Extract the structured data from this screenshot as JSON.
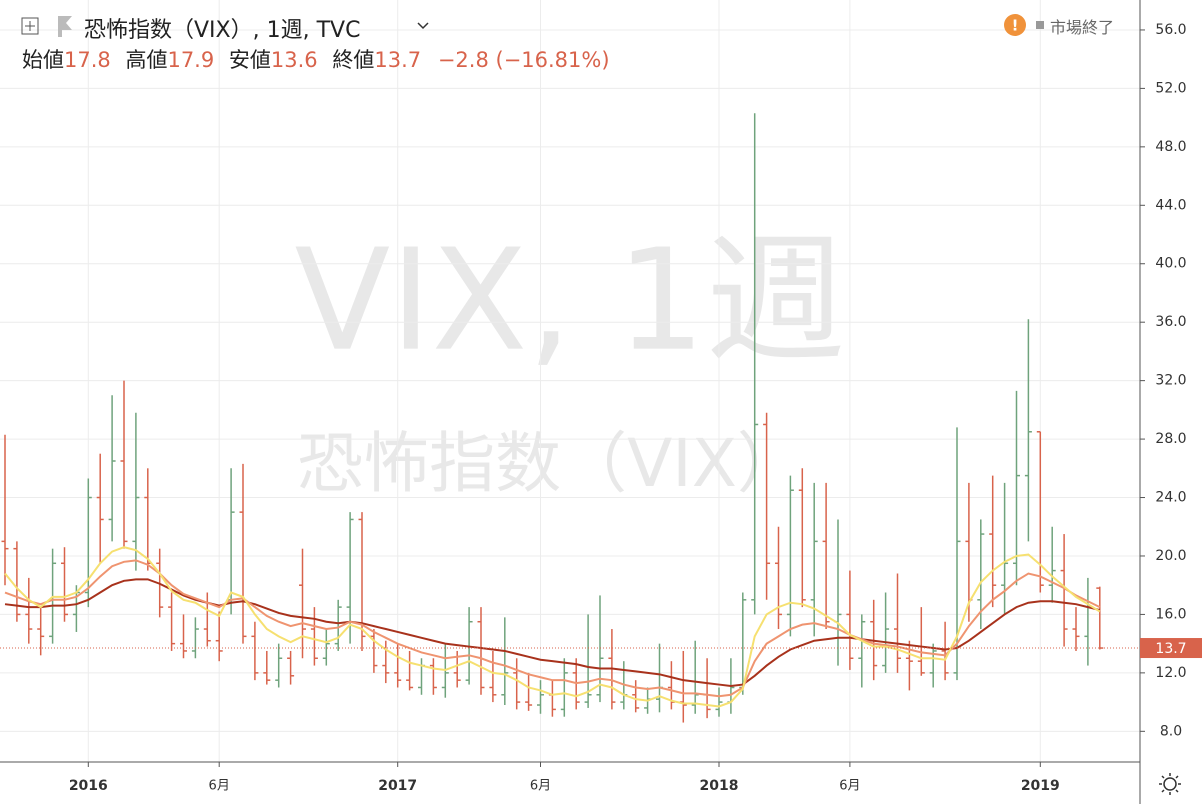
{
  "chart_data": {
    "type": "ohlc",
    "title": "恐怖指数（VIX）, 1週, TVC",
    "watermark": [
      "VIX, 1週",
      "恐怖指数（VIX）"
    ],
    "status": "市場終了",
    "header_labels": [
      "始値",
      "高値",
      "安値",
      "終値"
    ],
    "change": "−2.8",
    "change_pct": "(−16.81%)",
    "categories": [
      null,
      null,
      null,
      null,
      null,
      null,
      null,
      "2016",
      null,
      null,
      null,
      null,
      null,
      null,
      null,
      null,
      null,
      null,
      "6月",
      null,
      null,
      null,
      null,
      null,
      null,
      null,
      null,
      null,
      null,
      null,
      null,
      null,
      null,
      "2017",
      null,
      null,
      null,
      null,
      null,
      null,
      null,
      null,
      null,
      null,
      null,
      "6月",
      null,
      null,
      null,
      null,
      null,
      null,
      null,
      null,
      null,
      null,
      null,
      null,
      null,
      null,
      "2018",
      null,
      null,
      null,
      null,
      null,
      null,
      null,
      null,
      null,
      null,
      "6月",
      null,
      null,
      null,
      null,
      null,
      null,
      null,
      null,
      null,
      null,
      null,
      null,
      null,
      null,
      null,
      "2019",
      null,
      null,
      null,
      null,
      null
    ],
    "ohlc": {
      "name": "恐怖指数（VIX）",
      "up_color": "#6fa37c",
      "down_color": "#d8634b",
      "open": [
        21,
        20.5,
        16,
        15,
        14.5,
        19.5,
        16,
        17.5,
        24,
        22.5,
        26.5,
        21,
        24,
        19.5,
        16.5,
        14,
        13.5,
        15,
        14.2,
        17,
        23,
        14.5,
        12,
        11.5,
        13,
        18,
        15,
        13,
        14,
        16.5,
        22.5,
        14.5,
        12.5,
        12,
        11.5,
        11,
        12.5,
        11,
        12,
        11.5,
        15.5,
        11,
        10.5,
        12,
        10,
        9.8,
        10.5,
        9.5,
        12,
        10,
        10.5,
        13,
        10,
        10.5,
        9.6,
        10.2,
        11,
        10,
        9.8,
        10.5,
        9.5,
        10,
        11,
        17,
        29,
        19.5,
        16,
        24.5,
        17,
        21,
        15.5,
        16,
        13,
        15.5,
        12.5,
        15,
        13,
        12.8,
        12,
        13.5,
        12,
        21,
        17,
        21.5,
        18,
        19.5,
        25.5,
        28.5,
        18,
        19,
        15,
        14.5,
        17.8
      ],
      "high": [
        28.3,
        21,
        18.5,
        16.5,
        20.5,
        20.6,
        18,
        25.3,
        27,
        31,
        32,
        29.8,
        26,
        20.5,
        17.5,
        16,
        15.8,
        17.5,
        16.2,
        26,
        26.3,
        15.5,
        13.5,
        14,
        13.5,
        20.5,
        16.5,
        15,
        17,
        23,
        23,
        15,
        14.2,
        14,
        13.5,
        13,
        13,
        14,
        13.5,
        16.5,
        16.5,
        13.5,
        15.8,
        13,
        12,
        11.5,
        11.5,
        13,
        13,
        16,
        17.3,
        15,
        12.8,
        11.5,
        11,
        14,
        12.8,
        13.5,
        14.2,
        13,
        11,
        13,
        17.5,
        50.3,
        29.8,
        22,
        25.5,
        26,
        25,
        25,
        22.5,
        19,
        16,
        17,
        17.5,
        18.8,
        14.2,
        16.5,
        14,
        15.5,
        28.8,
        25,
        22.5,
        25.5,
        25,
        31.3,
        36.2,
        28.5,
        22,
        21.5,
        16.5,
        18.5,
        17.9
      ],
      "low": [
        18,
        15.5,
        14,
        13.2,
        14,
        15.5,
        14.8,
        16.5,
        19.5,
        21,
        20.5,
        19,
        19,
        15.8,
        13.5,
        13,
        13,
        13.8,
        12.8,
        16,
        14,
        11.5,
        11.2,
        11,
        11.2,
        13,
        12.5,
        12.5,
        13.5,
        14,
        13.5,
        12,
        11.3,
        11,
        10.8,
        10.5,
        10.5,
        10.3,
        11,
        11.2,
        10.5,
        10,
        9.8,
        9.5,
        9.4,
        9.2,
        9,
        9,
        9.5,
        9.6,
        10,
        9.5,
        9.5,
        9.3,
        9.2,
        9.3,
        9.5,
        8.6,
        9.2,
        8.9,
        9,
        9.2,
        10.5,
        16,
        17,
        15,
        14.5,
        16.5,
        14.5,
        15,
        12.5,
        12.2,
        11,
        11.5,
        12,
        12,
        10.8,
        11.8,
        11,
        11.5,
        11.5,
        15.5,
        15,
        16.5,
        16,
        18,
        21,
        17.5,
        16.8,
        13.8,
        13.5,
        12.5,
        13.6
      ],
      "close": [
        20.5,
        16,
        15,
        14.5,
        19.5,
        16,
        17.5,
        24,
        22.5,
        26.5,
        21,
        24,
        19.5,
        16.5,
        14,
        13.5,
        15,
        14.2,
        13.5,
        23,
        14.5,
        12,
        11.5,
        13,
        11.8,
        15,
        13,
        14,
        16.5,
        22.5,
        14.5,
        12.5,
        12,
        11.5,
        11,
        12.5,
        11,
        12,
        11.5,
        15.5,
        11,
        10.5,
        12,
        10,
        9.8,
        10.5,
        9.5,
        12,
        10,
        10.5,
        13,
        10,
        10.5,
        9.6,
        10.2,
        11,
        10,
        9.8,
        10.5,
        9.5,
        10,
        11,
        17,
        29,
        19.5,
        16,
        24.5,
        17,
        21,
        15.5,
        16,
        13,
        15.5,
        12.5,
        15,
        13,
        12.8,
        12,
        13.5,
        12,
        21,
        17,
        21.5,
        18,
        19.5,
        25.5,
        28.5,
        18,
        19,
        15,
        14.5,
        16.5,
        13.7
      ]
    },
    "lines": [
      {
        "color": "#a8321c",
        "values": [
          16.7,
          16.6,
          16.5,
          16.5,
          16.6,
          16.6,
          16.7,
          17,
          17.5,
          18,
          18.3,
          18.4,
          18.4,
          18.1,
          17.7,
          17.3,
          17,
          16.8,
          16.6,
          16.8,
          16.9,
          16.7,
          16.4,
          16.1,
          15.9,
          15.8,
          15.7,
          15.5,
          15.4,
          15.5,
          15.4,
          15.2,
          15.0,
          14.8,
          14.6,
          14.4,
          14.2,
          14.0,
          13.9,
          13.8,
          13.7,
          13.6,
          13.5,
          13.3,
          13.1,
          12.9,
          12.8,
          12.7,
          12.6,
          12.4,
          12.3,
          12.3,
          12.2,
          12.1,
          12.0,
          11.9,
          11.7,
          11.5,
          11.4,
          11.3,
          11.2,
          11.1,
          11.2,
          11.8,
          12.5,
          13.1,
          13.6,
          13.9,
          14.2,
          14.3,
          14.4,
          14.4,
          14.3,
          14.2,
          14.1,
          14.0,
          13.9,
          13.8,
          13.7,
          13.6,
          13.7,
          14.2,
          14.8,
          15.4,
          16.0,
          16.5,
          16.8,
          16.9,
          16.9,
          16.8,
          16.7,
          16.5,
          16.3
        ]
      },
      {
        "color": "#ef9470",
        "values": [
          17.5,
          17.2,
          16.9,
          16.7,
          17.0,
          17.0,
          17.2,
          17.8,
          18.6,
          19.3,
          19.6,
          19.7,
          19.4,
          18.8,
          18.0,
          17.4,
          17.1,
          16.8,
          16.5,
          17.0,
          17.1,
          16.5,
          15.9,
          15.5,
          15.2,
          15.4,
          15.2,
          15.0,
          15.1,
          15.5,
          15.3,
          14.8,
          14.4,
          14.0,
          13.7,
          13.4,
          13.2,
          13.0,
          13.1,
          13.2,
          13.0,
          12.7,
          12.5,
          12.2,
          11.9,
          11.7,
          11.5,
          11.5,
          11.3,
          11.4,
          11.6,
          11.5,
          11.2,
          11.0,
          10.9,
          11.0,
          10.8,
          10.6,
          10.6,
          10.5,
          10.4,
          10.5,
          11.0,
          12.8,
          14.0,
          14.5,
          15.0,
          15.3,
          15.4,
          15.2,
          15.0,
          14.6,
          14.3,
          14.0,
          13.9,
          13.8,
          13.6,
          13.4,
          13.3,
          13.2,
          14.0,
          15.2,
          16.2,
          17.0,
          17.6,
          18.3,
          18.8,
          18.6,
          18.2,
          17.8,
          17.3,
          16.9,
          16.5
        ]
      },
      {
        "color": "#f6e070",
        "values": [
          18.8,
          17.8,
          17.0,
          16.5,
          17.2,
          17.2,
          17.5,
          18.4,
          19.5,
          20.3,
          20.6,
          20.4,
          19.8,
          18.8,
          17.6,
          17.0,
          16.8,
          16.3,
          15.9,
          17.5,
          17.2,
          16.0,
          15.0,
          14.5,
          14.1,
          14.5,
          14.3,
          14.1,
          14.4,
          15.3,
          15.0,
          14.2,
          13.6,
          13.1,
          12.7,
          12.5,
          12.3,
          12.2,
          12.5,
          12.8,
          12.4,
          12.0,
          11.9,
          11.5,
          11.0,
          10.8,
          10.5,
          10.6,
          10.4,
          10.7,
          11.2,
          11.0,
          10.5,
          10.2,
          10.1,
          10.4,
          10.1,
          9.9,
          9.9,
          9.8,
          9.7,
          10.0,
          10.9,
          14.5,
          16.0,
          16.5,
          16.8,
          16.7,
          16.4,
          15.9,
          15.4,
          14.6,
          14.2,
          13.8,
          13.8,
          13.6,
          13.3,
          13.0,
          13.0,
          12.9,
          14.5,
          16.8,
          18.2,
          19.0,
          19.6,
          20.0,
          20.1,
          19.4,
          18.6,
          17.9,
          17.2,
          16.7,
          16.2
        ]
      }
    ],
    "ylim": [
      5.9,
      58.05
    ],
    "yticks": [
      {
        "value": 8,
        "label": "8.0"
      },
      {
        "value": 12,
        "label": "12.0"
      },
      {
        "value": 16,
        "label": "16.0"
      },
      {
        "value": 20,
        "label": "20.0"
      },
      {
        "value": 24,
        "label": "24.0"
      },
      {
        "value": 28,
        "label": "28.0"
      },
      {
        "value": 32,
        "label": "32.0"
      },
      {
        "value": 36,
        "label": "36.0"
      },
      {
        "value": 40,
        "label": "40.0"
      },
      {
        "value": 44,
        "label": "44.0"
      },
      {
        "value": 48,
        "label": "48.0"
      },
      {
        "value": 52,
        "label": "52.0"
      },
      {
        "value": 56,
        "label": "56.0"
      }
    ],
    "grid": true,
    "last_color": "#d8634b"
  }
}
